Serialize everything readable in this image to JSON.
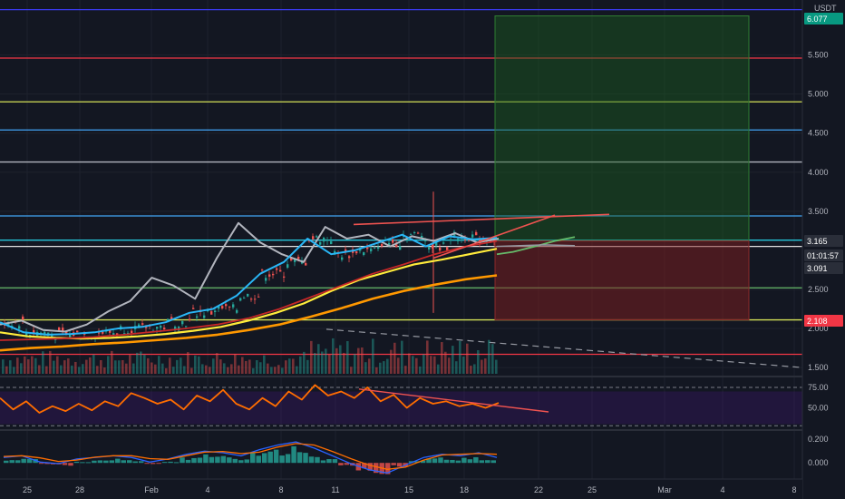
{
  "chart_data": [
    {
      "type": "line",
      "name": "price-pane",
      "title": "",
      "currency_label": "USDT",
      "ylim": [
        1.42,
        6.18
      ],
      "y_ticks": [
        "5.500",
        "5.000",
        "4.500",
        "4.000",
        "3.500",
        "2.500",
        "2.000",
        "1.500"
      ],
      "x_ticks": [
        "25",
        "28",
        "Feb",
        "4",
        "8",
        "11",
        "15",
        "18",
        "22",
        "25",
        "Mar",
        "4",
        "8"
      ],
      "grid": true,
      "horizontal_levels": [
        {
          "value": 6.08,
          "color": "#3a3af0"
        },
        {
          "value": 5.46,
          "color": "#f23645"
        },
        {
          "value": 4.9,
          "color": "#d4e157"
        },
        {
          "value": 4.54,
          "color": "#42a5f5"
        },
        {
          "value": 4.13,
          "color": "#b2b5be"
        },
        {
          "value": 3.44,
          "color": "#42a5f5"
        },
        {
          "value": 3.13,
          "color": "#26c6da"
        },
        {
          "value": 3.05,
          "color": "#e0e0e0"
        },
        {
          "value": 2.52,
          "color": "#66bb6a"
        },
        {
          "value": 2.11,
          "color": "#d4e157"
        },
        {
          "value": 1.67,
          "color": "#f23645"
        }
      ],
      "price_labels": [
        {
          "text": "6.077",
          "color": "#089981"
        },
        {
          "text": "3.165",
          "color": "#2a2e39"
        },
        {
          "text": "01:01:57",
          "color": "#2a2e39"
        },
        {
          "text": "3.091",
          "color": "#2a2e39"
        },
        {
          "text": "2.108",
          "color": "#f23645"
        }
      ],
      "long_position": {
        "entry": 3.12,
        "target": 6.0,
        "stop": 2.11
      },
      "series": [
        {
          "name": "",
          "color": "#b2b5be",
          "values": [
            2.05,
            2.1,
            1.98,
            1.96,
            2.05,
            2.22,
            2.35,
            2.65,
            2.55,
            2.38,
            2.9,
            3.35,
            3.1,
            2.95,
            2.85,
            3.3,
            3.15,
            3.2,
            3.05,
            3.18,
            3.12,
            3.22,
            3.1,
            3.15
          ]
        },
        {
          "name": "",
          "color": "#29b6f6",
          "values": [
            2.08,
            1.95,
            1.92,
            1.93,
            1.95,
            2.0,
            2.02,
            2.08,
            2.2,
            2.25,
            2.42,
            2.7,
            2.85,
            3.15,
            2.95,
            3.0,
            3.1,
            3.2,
            3.05,
            3.18,
            3.14,
            3.16
          ]
        },
        {
          "name": "",
          "color": "#ffeb3b",
          "values": [
            1.95,
            1.9,
            1.88,
            1.87,
            1.88,
            1.9,
            1.93,
            1.97,
            2.02,
            2.1,
            2.2,
            2.32,
            2.48,
            2.62,
            2.72,
            2.82,
            2.88,
            2.95,
            3.02
          ]
        },
        {
          "name": "",
          "color": "#ff9800",
          "values": [
            1.72,
            1.75,
            1.77,
            1.8,
            1.82,
            1.85,
            1.88,
            1.92,
            1.98,
            2.05,
            2.15,
            2.26,
            2.38,
            2.48,
            2.56,
            2.63,
            2.68
          ]
        },
        {
          "name": "",
          "color": "#c62828",
          "values": [
            1.85,
            1.86,
            1.87,
            1.89,
            1.92,
            1.96,
            2.0,
            2.05,
            2.13,
            2.25,
            2.4,
            2.55,
            2.7,
            2.82,
            2.95,
            3.05,
            3.12
          ]
        }
      ]
    },
    {
      "type": "line",
      "name": "rsi-pane",
      "ylim": [
        25,
        85
      ],
      "y_ticks": [
        "75.00",
        "50.00"
      ],
      "band": [
        30,
        70
      ],
      "series": [
        {
          "name": "",
          "color": "#ff6d00",
          "values": [
            62,
            48,
            58,
            44,
            52,
            46,
            55,
            47,
            58,
            52,
            68,
            62,
            55,
            60,
            48,
            65,
            58,
            72,
            55,
            48,
            62,
            52,
            70,
            60,
            78,
            65,
            70,
            62,
            75,
            58,
            66,
            50,
            62,
            55,
            58,
            52,
            55,
            50,
            56
          ]
        }
      ]
    },
    {
      "type": "bar",
      "name": "macd-pane",
      "ylim": [
        -0.12,
        0.26
      ],
      "y_ticks": [
        "0.200",
        "0.000"
      ],
      "series": [
        {
          "name": "",
          "color": "#26a69a",
          "values": [
            0.02,
            0.03,
            -0.01,
            -0.02,
            0.01,
            0.02,
            0.03,
            0.02,
            -0.01,
            0.01,
            0.04,
            0.06,
            0.05,
            0.03,
            0.07,
            0.1,
            0.12,
            0.08,
            0.03,
            -0.02,
            -0.06,
            -0.08,
            -0.03,
            0.02,
            0.04,
            0.03,
            0.05,
            0.02
          ]
        }
      ]
    }
  ]
}
